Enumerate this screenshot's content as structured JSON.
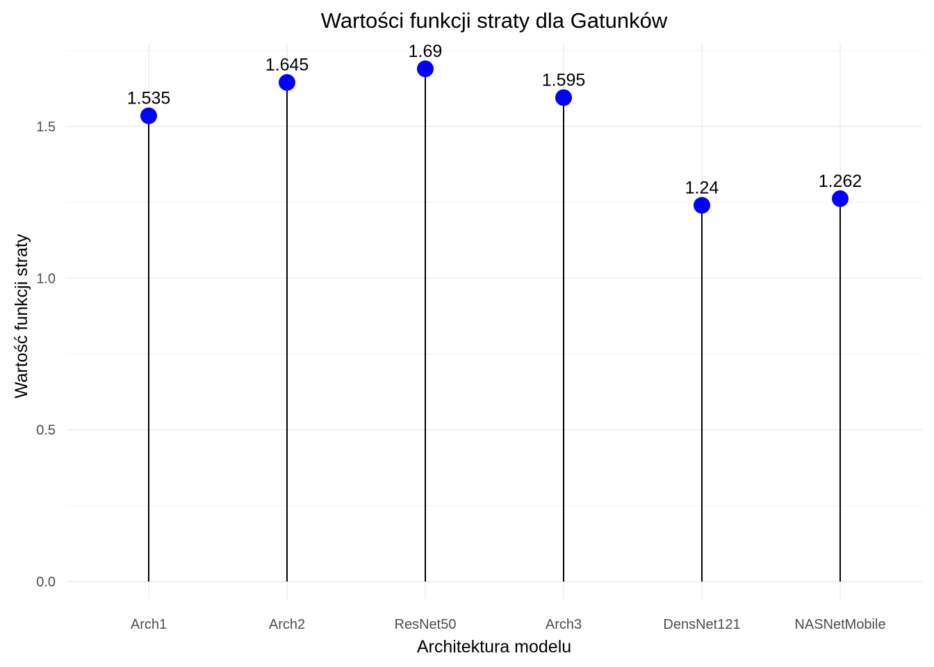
{
  "chart_data": {
    "type": "lollipop",
    "title": "Wartości funkcji straty dla Gatunków",
    "xlabel": "Architektura modelu",
    "ylabel": "Wartość funkcji straty",
    "categories": [
      "Arch1",
      "Arch2",
      "ResNet50",
      "Arch3",
      "DensNet121",
      "NASNetMobile"
    ],
    "values": [
      1.535,
      1.645,
      1.69,
      1.595,
      1.24,
      1.262
    ],
    "data_labels": [
      "1.535",
      "1.645",
      "1.69",
      "1.595",
      "1.24",
      "1.262"
    ],
    "yticks": [
      0.0,
      0.5,
      1.0,
      1.5
    ],
    "ytick_labels": [
      "0.0",
      "0.5",
      "1.0",
      "1.5"
    ],
    "ylim": [
      0,
      1.75
    ],
    "grid": true,
    "legend": "none",
    "colors": {
      "point": "#0000ff",
      "stem": "#000000",
      "grid_major": "#ebebeb",
      "grid_minor": "#f3f3f3"
    }
  }
}
